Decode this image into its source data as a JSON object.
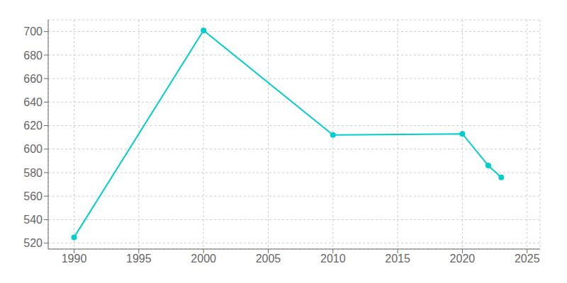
{
  "chart_data": {
    "type": "line",
    "x": [
      1990,
      2000,
      2010,
      2020,
      2022,
      2023
    ],
    "values": [
      525,
      701,
      612,
      613,
      586,
      576
    ],
    "color": "#00CDCD",
    "marker": "circle",
    "xlim": [
      1988,
      2026
    ],
    "ylim": [
      515,
      710
    ],
    "xticks": [
      1990,
      1995,
      2000,
      2005,
      2010,
      2015,
      2020,
      2025
    ],
    "yticks": [
      520,
      540,
      560,
      580,
      600,
      620,
      640,
      660,
      680,
      700
    ],
    "grid": true
  }
}
